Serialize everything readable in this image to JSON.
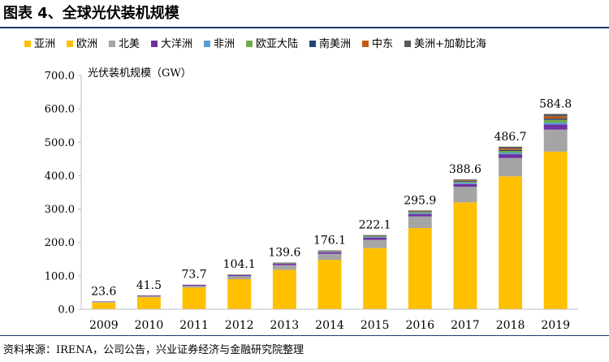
{
  "figure_title": "图表 4、全球光伏装机规模",
  "source_note": "资料来源：IRENA，公司公告，兴业证券经济与金融研究院整理",
  "chart_data": {
    "type": "bar",
    "stacked": true,
    "title": "",
    "ylabel": "光伏装机规模（GW）",
    "xlabel": "",
    "ylim": [
      0,
      700
    ],
    "yticks": [
      "0.0",
      "100.0",
      "200.0",
      "300.0",
      "400.0",
      "500.0",
      "600.0",
      "700.0"
    ],
    "grid": false,
    "legend_position": "top",
    "categories": [
      "2009",
      "2010",
      "2011",
      "2012",
      "2013",
      "2014",
      "2015",
      "2016",
      "2017",
      "2018",
      "2019"
    ],
    "totals": [
      23.6,
      41.5,
      73.7,
      104.1,
      139.6,
      176.1,
      222.1,
      295.9,
      388.6,
      486.7,
      584.8
    ],
    "total_labels": [
      "23.6",
      "41.5",
      "73.7",
      "104.1",
      "139.6",
      "176.1",
      "222.1",
      "295.9",
      "388.6",
      "486.7",
      "584.8"
    ],
    "series": [
      {
        "name": "亚洲",
        "color": "#FFC000",
        "values": [
          20,
          36,
          65,
          90,
          118,
          148,
          183,
          243,
          320,
          398,
          472
        ]
      },
      {
        "name": "欧洲",
        "color": "#FFC000",
        "values": [
          0,
          0,
          0,
          0,
          0,
          0,
          0,
          0,
          0,
          0,
          0
        ]
      },
      {
        "name": "北美",
        "color": "#A5A5A5",
        "values": [
          2,
          3,
          5,
          9,
          14,
          18,
          25,
          35,
          47,
          55,
          66
        ]
      },
      {
        "name": "大洋洲",
        "color": "#7030A0",
        "values": [
          1,
          2,
          3,
          3,
          4,
          5,
          6,
          7,
          8,
          11,
          15
        ]
      },
      {
        "name": "非洲",
        "color": "#5B9BD5",
        "values": [
          0.1,
          0.1,
          0.2,
          0.3,
          0.5,
          1,
          2,
          3,
          4,
          5,
          6
        ]
      },
      {
        "name": "欧亚大陆",
        "color": "#70AD47",
        "values": [
          0.1,
          0.1,
          0.2,
          0.3,
          0.5,
          1,
          2,
          3,
          3,
          5,
          8
        ]
      },
      {
        "name": "南美洲",
        "color": "#264478",
        "values": [
          0.1,
          0.1,
          0.1,
          0.2,
          0.3,
          0.5,
          0.7,
          1,
          2,
          3,
          4
        ]
      },
      {
        "name": "中东",
        "color": "#C55A11",
        "values": [
          0.1,
          0.1,
          0.1,
          0.2,
          0.3,
          0.5,
          0.7,
          1,
          2,
          4,
          6
        ]
      },
      {
        "name": "美洲+加勒比海",
        "color": "#595959",
        "values": [
          0.2,
          0.1,
          0.1,
          1.1,
          2,
          2.1,
          2.7,
          2.9,
          2.6,
          5.7,
          7.8
        ]
      }
    ]
  }
}
